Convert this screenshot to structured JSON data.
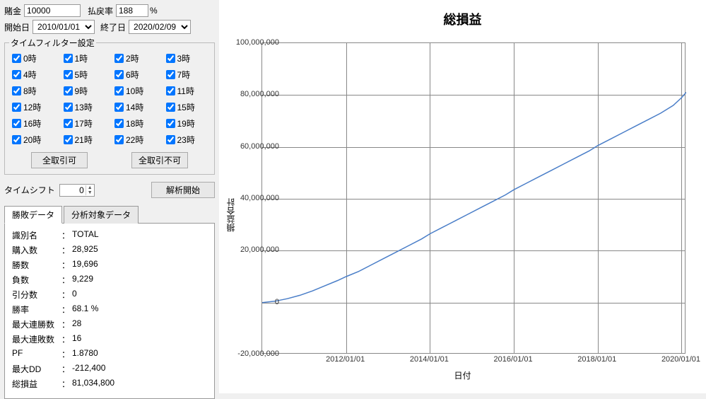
{
  "inputs": {
    "bet_label": "賭金",
    "bet_value": "10000",
    "rate_label": "払戻率",
    "rate_value": "188",
    "percent": "%",
    "start_label": "開始日",
    "start_value": "2010/01/01",
    "end_label": "終了日",
    "end_value": "2020/02/09"
  },
  "filter": {
    "legend": "タイムフィルター設定",
    "hours": [
      "0時",
      "1時",
      "2時",
      "3時",
      "4時",
      "5時",
      "6時",
      "7時",
      "8時",
      "9時",
      "10時",
      "11時",
      "12時",
      "13時",
      "14時",
      "15時",
      "16時",
      "17時",
      "18時",
      "19時",
      "20時",
      "21時",
      "22時",
      "23時"
    ],
    "btn_enable_all": "全取引可",
    "btn_disable_all": "全取引不可"
  },
  "shift": {
    "label": "タイムシフト",
    "value": "0",
    "analyze_btn": "解析開始"
  },
  "tabs": {
    "winloss": "勝敗データ",
    "analysis": "分析対象データ"
  },
  "stats": [
    {
      "label": "識別名",
      "value": "TOTAL"
    },
    {
      "label": "購入数",
      "value": "28,925"
    },
    {
      "label": "勝数",
      "value": "19,696"
    },
    {
      "label": "負数",
      "value": "9,229"
    },
    {
      "label": "引分数",
      "value": "0"
    },
    {
      "label": "勝率",
      "value": "68.1 %"
    },
    {
      "label": "最大連勝数",
      "value": "28"
    },
    {
      "label": "最大連敗数",
      "value": "16"
    },
    {
      "label": "PF",
      "value": "1.8780"
    },
    {
      "label": "最大DD",
      "value": "-212,400"
    },
    {
      "label": "総損益",
      "value": "81,034,800"
    }
  ],
  "chart": {
    "title": "総損益",
    "ylabel": "損益合計",
    "xlabel": "日付",
    "line_color": "#4a7ec8",
    "grid_color": "#888888",
    "ylim": [
      -20000000,
      100000000
    ],
    "yticks": [
      {
        "v": -20000000,
        "label": "-20,000,000"
      },
      {
        "v": 0,
        "label": "0"
      },
      {
        "v": 20000000,
        "label": "20,000,000"
      },
      {
        "v": 40000000,
        "label": "40,000,000"
      },
      {
        "v": 60000000,
        "label": "60,000,000"
      },
      {
        "v": 80000000,
        "label": "80,000,000"
      },
      {
        "v": 100000000,
        "label": "100,000,000"
      }
    ],
    "xlim": [
      2010.0,
      2020.11
    ],
    "xticks": [
      {
        "v": 2012.0,
        "label": "2012/01/01"
      },
      {
        "v": 2014.0,
        "label": "2014/01/01"
      },
      {
        "v": 2016.0,
        "label": "2016/01/01"
      },
      {
        "v": 2018.0,
        "label": "2018/01/01"
      },
      {
        "v": 2020.0,
        "label": "2020/01/01"
      }
    ],
    "data": [
      {
        "x": 2010.0,
        "y": 0
      },
      {
        "x": 2010.3,
        "y": 500000
      },
      {
        "x": 2010.6,
        "y": 1500000
      },
      {
        "x": 2010.9,
        "y": 2800000
      },
      {
        "x": 2011.2,
        "y": 4500000
      },
      {
        "x": 2011.5,
        "y": 6500000
      },
      {
        "x": 2011.8,
        "y": 8500000
      },
      {
        "x": 2012.0,
        "y": 10000000
      },
      {
        "x": 2012.3,
        "y": 12000000
      },
      {
        "x": 2012.6,
        "y": 14500000
      },
      {
        "x": 2012.9,
        "y": 17000000
      },
      {
        "x": 2013.2,
        "y": 19500000
      },
      {
        "x": 2013.5,
        "y": 22000000
      },
      {
        "x": 2013.8,
        "y": 24500000
      },
      {
        "x": 2014.0,
        "y": 26500000
      },
      {
        "x": 2014.3,
        "y": 29000000
      },
      {
        "x": 2014.6,
        "y": 31500000
      },
      {
        "x": 2014.9,
        "y": 34000000
      },
      {
        "x": 2015.2,
        "y": 36500000
      },
      {
        "x": 2015.5,
        "y": 39000000
      },
      {
        "x": 2015.8,
        "y": 41500000
      },
      {
        "x": 2016.0,
        "y": 43500000
      },
      {
        "x": 2016.3,
        "y": 46000000
      },
      {
        "x": 2016.6,
        "y": 48500000
      },
      {
        "x": 2016.9,
        "y": 51000000
      },
      {
        "x": 2017.2,
        "y": 53500000
      },
      {
        "x": 2017.5,
        "y": 56000000
      },
      {
        "x": 2017.8,
        "y": 58500000
      },
      {
        "x": 2018.0,
        "y": 60500000
      },
      {
        "x": 2018.3,
        "y": 63000000
      },
      {
        "x": 2018.6,
        "y": 65500000
      },
      {
        "x": 2018.9,
        "y": 68000000
      },
      {
        "x": 2019.2,
        "y": 70500000
      },
      {
        "x": 2019.5,
        "y": 73000000
      },
      {
        "x": 2019.8,
        "y": 76000000
      },
      {
        "x": 2020.0,
        "y": 79000000
      },
      {
        "x": 2020.11,
        "y": 81034800
      }
    ]
  }
}
